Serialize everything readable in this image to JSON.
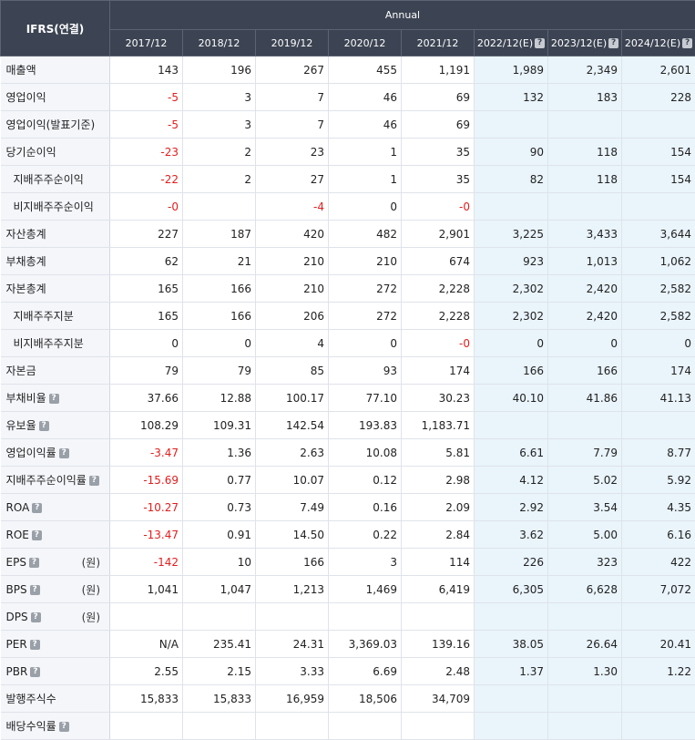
{
  "header": {
    "corner_label": "IFRS(연결)",
    "group_label": "Annual",
    "help_glyph": "?",
    "years": [
      {
        "label": "2017/12",
        "estimate": false
      },
      {
        "label": "2018/12",
        "estimate": false
      },
      {
        "label": "2019/12",
        "estimate": false
      },
      {
        "label": "2020/12",
        "estimate": false
      },
      {
        "label": "2021/12",
        "estimate": false
      },
      {
        "label": "2022/12(E)",
        "estimate": true
      },
      {
        "label": "2023/12(E)",
        "estimate": true
      },
      {
        "label": "2024/12(E)",
        "estimate": true
      }
    ]
  },
  "colors": {
    "header_bg": "#3c4453",
    "label_bg": "#f4f6fa",
    "estimate_bg": "#e9f4fb",
    "negative": "#e31d1d"
  },
  "rows": [
    {
      "label": "매출액",
      "indent": false,
      "help": false,
      "unit": "",
      "values": [
        "143",
        "196",
        "267",
        "455",
        "1,191",
        "1,989",
        "2,349",
        "2,601"
      ]
    },
    {
      "label": "영업이익",
      "indent": false,
      "help": false,
      "unit": "",
      "values": [
        "-5",
        "3",
        "7",
        "46",
        "69",
        "132",
        "183",
        "228"
      ]
    },
    {
      "label": "영업이익(발표기준)",
      "indent": false,
      "help": false,
      "unit": "",
      "values": [
        "-5",
        "3",
        "7",
        "46",
        "69",
        "",
        "",
        ""
      ]
    },
    {
      "label": "당기순이익",
      "indent": false,
      "help": false,
      "unit": "",
      "values": [
        "-23",
        "2",
        "23",
        "1",
        "35",
        "90",
        "118",
        "154"
      ]
    },
    {
      "label": "지배주주순이익",
      "indent": true,
      "help": false,
      "unit": "",
      "values": [
        "-22",
        "2",
        "27",
        "1",
        "35",
        "82",
        "118",
        "154"
      ]
    },
    {
      "label": "비지배주주순이익",
      "indent": true,
      "help": false,
      "unit": "",
      "values": [
        "-0",
        "",
        "-4",
        "0",
        "-0",
        "",
        "",
        ""
      ]
    },
    {
      "label": "자산총계",
      "indent": false,
      "help": false,
      "unit": "",
      "values": [
        "227",
        "187",
        "420",
        "482",
        "2,901",
        "3,225",
        "3,433",
        "3,644"
      ]
    },
    {
      "label": "부채총계",
      "indent": false,
      "help": false,
      "unit": "",
      "values": [
        "62",
        "21",
        "210",
        "210",
        "674",
        "923",
        "1,013",
        "1,062"
      ]
    },
    {
      "label": "자본총계",
      "indent": false,
      "help": false,
      "unit": "",
      "values": [
        "165",
        "166",
        "210",
        "272",
        "2,228",
        "2,302",
        "2,420",
        "2,582"
      ]
    },
    {
      "label": "지배주주지분",
      "indent": true,
      "help": false,
      "unit": "",
      "values": [
        "165",
        "166",
        "206",
        "272",
        "2,228",
        "2,302",
        "2,420",
        "2,582"
      ]
    },
    {
      "label": "비지배주주지분",
      "indent": true,
      "help": false,
      "unit": "",
      "values": [
        "0",
        "0",
        "4",
        "0",
        "-0",
        "0",
        "0",
        "0"
      ]
    },
    {
      "label": "자본금",
      "indent": false,
      "help": false,
      "unit": "",
      "values": [
        "79",
        "79",
        "85",
        "93",
        "174",
        "166",
        "166",
        "174"
      ]
    },
    {
      "label": "부채비율",
      "indent": false,
      "help": true,
      "unit": "",
      "values": [
        "37.66",
        "12.88",
        "100.17",
        "77.10",
        "30.23",
        "40.10",
        "41.86",
        "41.13"
      ]
    },
    {
      "label": "유보율",
      "indent": false,
      "help": true,
      "unit": "",
      "values": [
        "108.29",
        "109.31",
        "142.54",
        "193.83",
        "1,183.71",
        "",
        "",
        ""
      ]
    },
    {
      "label": "영업이익률",
      "indent": false,
      "help": true,
      "unit": "",
      "values": [
        "-3.47",
        "1.36",
        "2.63",
        "10.08",
        "5.81",
        "6.61",
        "7.79",
        "8.77"
      ]
    },
    {
      "label": "지배주주순이익률",
      "indent": false,
      "help": true,
      "unit": "",
      "values": [
        "-15.69",
        "0.77",
        "10.07",
        "0.12",
        "2.98",
        "4.12",
        "5.02",
        "5.92"
      ]
    },
    {
      "label": "ROA",
      "indent": false,
      "help": true,
      "unit": "",
      "values": [
        "-10.27",
        "0.73",
        "7.49",
        "0.16",
        "2.09",
        "2.92",
        "3.54",
        "4.35"
      ]
    },
    {
      "label": "ROE",
      "indent": false,
      "help": true,
      "unit": "",
      "values": [
        "-13.47",
        "0.91",
        "14.50",
        "0.22",
        "2.84",
        "3.62",
        "5.00",
        "6.16"
      ]
    },
    {
      "label": "EPS",
      "indent": false,
      "help": true,
      "unit": "(원)",
      "values": [
        "-142",
        "10",
        "166",
        "3",
        "114",
        "226",
        "323",
        "422"
      ]
    },
    {
      "label": "BPS",
      "indent": false,
      "help": true,
      "unit": "(원)",
      "values": [
        "1,041",
        "1,047",
        "1,213",
        "1,469",
        "6,419",
        "6,305",
        "6,628",
        "7,072"
      ]
    },
    {
      "label": "DPS",
      "indent": false,
      "help": true,
      "unit": "(원)",
      "values": [
        "",
        "",
        "",
        "",
        "",
        "",
        "",
        ""
      ]
    },
    {
      "label": "PER",
      "indent": false,
      "help": true,
      "unit": "",
      "values": [
        "N/A",
        "235.41",
        "24.31",
        "3,369.03",
        "139.16",
        "38.05",
        "26.64",
        "20.41"
      ]
    },
    {
      "label": "PBR",
      "indent": false,
      "help": true,
      "unit": "",
      "values": [
        "2.55",
        "2.15",
        "3.33",
        "6.69",
        "2.48",
        "1.37",
        "1.30",
        "1.22"
      ]
    },
    {
      "label": "발행주식수",
      "indent": false,
      "help": false,
      "unit": "",
      "values": [
        "15,833",
        "15,833",
        "16,959",
        "18,506",
        "34,709",
        "",
        "",
        ""
      ]
    },
    {
      "label": "배당수익률",
      "indent": false,
      "help": true,
      "unit": "",
      "values": [
        "",
        "",
        "",
        "",
        "",
        "",
        "",
        ""
      ]
    }
  ]
}
